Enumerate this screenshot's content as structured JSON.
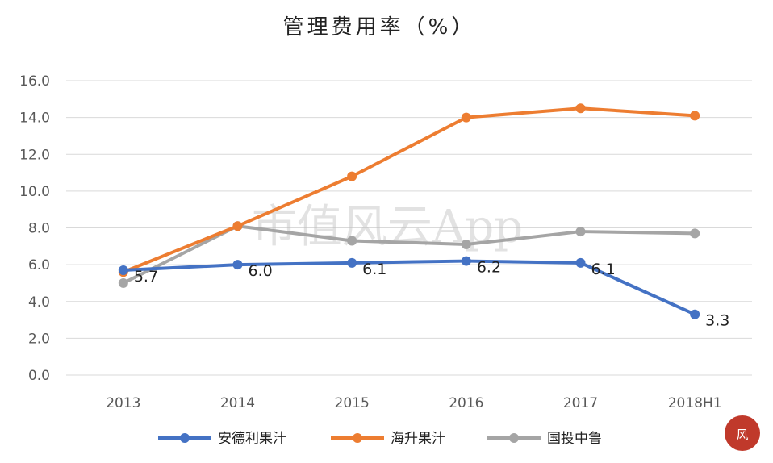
{
  "chart_data": {
    "type": "line",
    "title": "管理费用率（%）",
    "categories": [
      "2013",
      "2014",
      "2015",
      "2016",
      "2017",
      "2018H1"
    ],
    "ylim": [
      0,
      16
    ],
    "yticks": [
      "0.0",
      "2.0",
      "4.0",
      "6.0",
      "8.0",
      "10.0",
      "12.0",
      "14.0",
      "16.0"
    ],
    "grid": true,
    "legend_position": "bottom",
    "series": [
      {
        "name": "安德利果汁",
        "color": "#4472C4",
        "values": [
          5.7,
          6.0,
          6.1,
          6.2,
          6.1,
          3.3
        ],
        "labels": [
          "5.7",
          "6.0",
          "6.1",
          "6.2",
          "6.1",
          "3.3"
        ]
      },
      {
        "name": "海升果汁",
        "color": "#ED7D31",
        "values": [
          5.6,
          8.1,
          10.8,
          14.0,
          14.5,
          14.1
        ]
      },
      {
        "name": "国投中鲁",
        "color": "#A5A5A5",
        "values": [
          5.0,
          8.1,
          7.3,
          7.1,
          7.8,
          7.7
        ]
      }
    ]
  },
  "watermark": "市值风云App"
}
